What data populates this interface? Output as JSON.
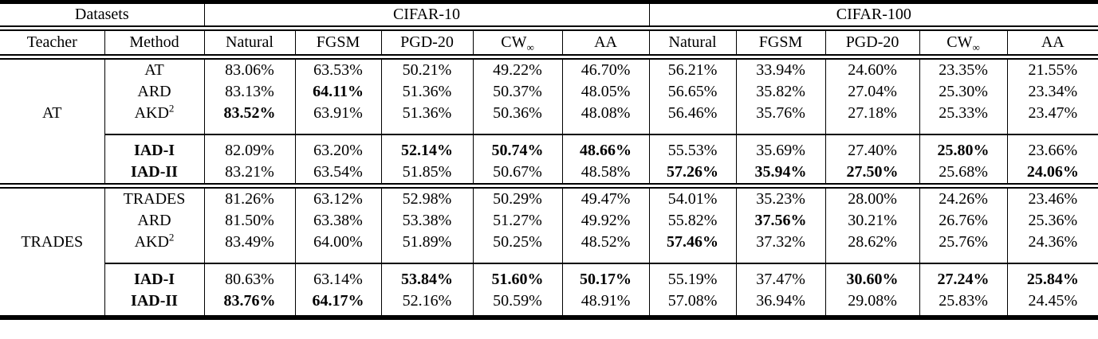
{
  "colors": {
    "text": "#000000",
    "background": "#ffffff",
    "rule": "#000000"
  },
  "header": {
    "datasets": "Datasets",
    "teacher": "Teacher",
    "method": "Method",
    "dataset_groups": [
      "CIFAR-10",
      "CIFAR-100"
    ],
    "metrics": [
      {
        "t": "Natural"
      },
      {
        "t": "FGSM"
      },
      {
        "t": "PGD-20"
      },
      {
        "t": "CW",
        "sub": "∞"
      },
      {
        "t": "AA"
      }
    ]
  },
  "groups": [
    {
      "teacher": "AT",
      "rows": [
        {
          "method": {
            "t": "AT"
          },
          "values": [
            "83.06%",
            "63.53%",
            "50.21%",
            "49.22%",
            "46.70%",
            "56.21%",
            "33.94%",
            "24.60%",
            "23.35%",
            "21.55%"
          ],
          "bold": []
        },
        {
          "method": {
            "t": "ARD"
          },
          "values": [
            "83.13%",
            "64.11%",
            "51.36%",
            "50.37%",
            "48.05%",
            "56.65%",
            "35.82%",
            "27.04%",
            "25.30%",
            "23.34%"
          ],
          "bold": [
            1
          ]
        },
        {
          "method": {
            "t": "AKD",
            "sup": "2"
          },
          "values": [
            "83.52%",
            "63.91%",
            "51.36%",
            "50.36%",
            "48.08%",
            "56.46%",
            "35.76%",
            "27.18%",
            "25.33%",
            "23.47%"
          ],
          "bold": [
            0
          ]
        }
      ],
      "iad_rows": [
        {
          "method": {
            "t": "IAD-I",
            "bold": true
          },
          "values": [
            "82.09%",
            "63.20%",
            "52.14%",
            "50.74%",
            "48.66%",
            "55.53%",
            "35.69%",
            "27.40%",
            "25.80%",
            "23.66%"
          ],
          "bold": [
            2,
            3,
            4,
            8
          ]
        },
        {
          "method": {
            "t": "IAD-II",
            "bold": true
          },
          "values": [
            "83.21%",
            "63.54%",
            "51.85%",
            "50.67%",
            "48.58%",
            "57.26%",
            "35.94%",
            "27.50%",
            "25.68%",
            "24.06%"
          ],
          "bold": [
            5,
            6,
            7,
            9
          ]
        }
      ]
    },
    {
      "teacher": "TRADES",
      "rows": [
        {
          "method": {
            "t": "TRADES"
          },
          "values": [
            "81.26%",
            "63.12%",
            "52.98%",
            "50.29%",
            "49.47%",
            "54.01%",
            "35.23%",
            "28.00%",
            "24.26%",
            "23.46%"
          ],
          "bold": []
        },
        {
          "method": {
            "t": "ARD"
          },
          "values": [
            "81.50%",
            "63.38%",
            "53.38%",
            "51.27%",
            "49.92%",
            "55.82%",
            "37.56%",
            "30.21%",
            "26.76%",
            "25.36%"
          ],
          "bold": [
            6
          ]
        },
        {
          "method": {
            "t": "AKD",
            "sup": "2"
          },
          "values": [
            "83.49%",
            "64.00%",
            "51.89%",
            "50.25%",
            "48.52%",
            "57.46%",
            "37.32%",
            "28.62%",
            "25.76%",
            "24.36%"
          ],
          "bold": [
            5
          ]
        }
      ],
      "iad_rows": [
        {
          "method": {
            "t": "IAD-I",
            "bold": true
          },
          "values": [
            "80.63%",
            "63.14%",
            "53.84%",
            "51.60%",
            "50.17%",
            "55.19%",
            "37.47%",
            "30.60%",
            "27.24%",
            "25.84%"
          ],
          "bold": [
            2,
            3,
            4,
            7,
            8,
            9
          ]
        },
        {
          "method": {
            "t": "IAD-II",
            "bold": true
          },
          "values": [
            "83.76%",
            "64.17%",
            "52.16%",
            "50.59%",
            "48.91%",
            "57.08%",
            "36.94%",
            "29.08%",
            "25.83%",
            "24.45%"
          ],
          "bold": [
            0,
            1
          ]
        }
      ]
    }
  ]
}
